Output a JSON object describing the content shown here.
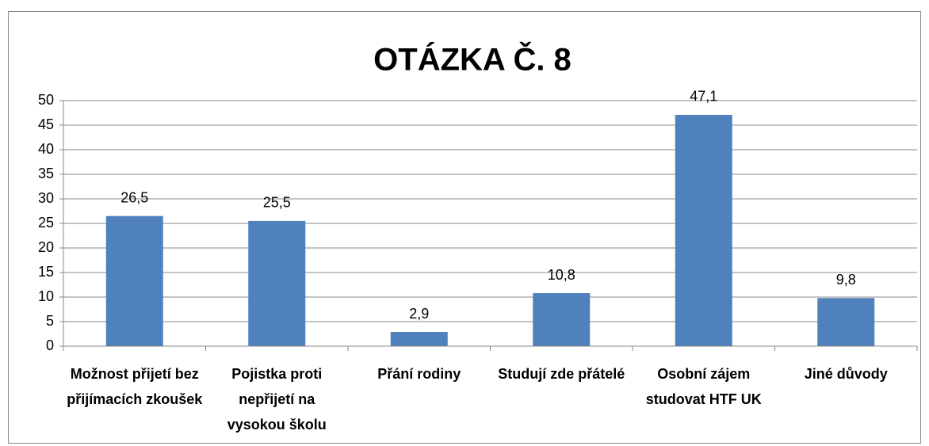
{
  "chart_data": {
    "type": "bar",
    "title": "OTÁZKA Č. 8",
    "categories": [
      "Možnost přijetí bez přijímacích zkoušek",
      "Pojistka proti nepřijetí na vysokou školu",
      "Přání rodiny",
      "Studují zde přátelé",
      "Osobní zájem studovat HTF UK",
      "Jiné důvody"
    ],
    "values": [
      26.5,
      25.5,
      2.9,
      10.8,
      47.1,
      9.8
    ],
    "value_labels": [
      "26,5",
      "25,5",
      "2,9",
      "10,8",
      "47,1",
      "9,8"
    ],
    "color": "#4f81bd",
    "ylim": [
      0,
      50
    ],
    "yticks": [
      0,
      5,
      10,
      15,
      20,
      25,
      30,
      35,
      40,
      45,
      50
    ],
    "grid": true
  }
}
